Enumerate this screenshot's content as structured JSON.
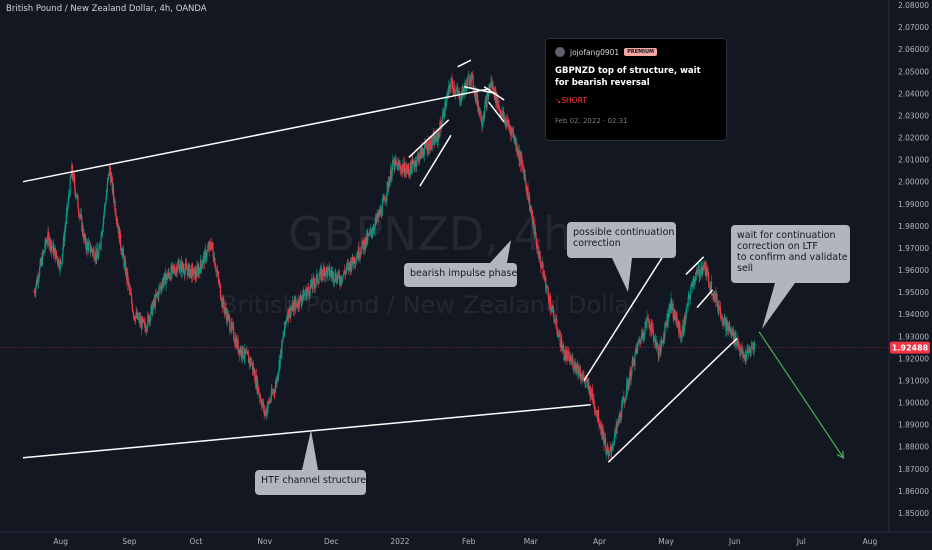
{
  "header": {
    "symbol_title": "British Pound / New Zealand Dollar, 4h, OANDA"
  },
  "watermark": {
    "ticker": "GBPNZD, 4h",
    "name": "British Pound / New Zealand Dollar"
  },
  "price_tag": {
    "value": "1.92488",
    "color": "#f23645"
  },
  "idea": {
    "author": "jojofang0901",
    "badge": "PREMIUM",
    "title": "GBPNZD top of structure, wait for bearish reversal",
    "side": "↘SHORT",
    "date": "Feb 02, 2022 · 02:31"
  },
  "colors": {
    "background": "#131722",
    "up_candle": "#089981",
    "down_candle": "#f23645",
    "drawing": "#ffffff",
    "projection": "#4caf50",
    "callout": "#b2b5be"
  },
  "chart_data": {
    "type": "candlestick",
    "title": "British Pound / New Zealand Dollar, 4h, OANDA",
    "xlabel": "",
    "ylabel": "",
    "x_ticks": [
      "Aug",
      "Sep",
      "Oct",
      "Nov",
      "Dec",
      "2022",
      "Feb",
      "Mar",
      "Apr",
      "May",
      "Jun",
      "Jul",
      "Aug"
    ],
    "y_ticks": [
      "2.08000",
      "2.07000",
      "2.06000",
      "2.05000",
      "2.04000",
      "2.03000",
      "2.02000",
      "2.01000",
      "2.00000",
      "1.99000",
      "1.98000",
      "1.97000",
      "1.96000",
      "1.95000",
      "1.94000",
      "1.93000",
      "1.92000",
      "1.91000",
      "1.90000",
      "1.89000",
      "1.88000",
      "1.87000",
      "1.86000",
      "1.85000"
    ],
    "ylim": [
      1.85,
      2.08
    ],
    "last_price": 1.92488,
    "price_path": [
      {
        "t": "2021-07-20",
        "p": 1.95
      },
      {
        "t": "2021-07-26",
        "p": 1.975
      },
      {
        "t": "2021-08-01",
        "p": 1.962
      },
      {
        "t": "2021-08-06",
        "p": 2.005
      },
      {
        "t": "2021-08-12",
        "p": 1.972
      },
      {
        "t": "2021-08-18",
        "p": 1.966
      },
      {
        "t": "2021-08-23",
        "p": 2.006
      },
      {
        "t": "2021-08-28",
        "p": 1.972
      },
      {
        "t": "2021-09-03",
        "p": 1.94
      },
      {
        "t": "2021-09-08",
        "p": 1.934
      },
      {
        "t": "2021-09-16",
        "p": 1.955
      },
      {
        "t": "2021-09-23",
        "p": 1.962
      },
      {
        "t": "2021-10-01",
        "p": 1.958
      },
      {
        "t": "2021-10-08",
        "p": 1.972
      },
      {
        "t": "2021-10-13",
        "p": 1.945
      },
      {
        "t": "2021-10-20",
        "p": 1.925
      },
      {
        "t": "2021-10-26",
        "p": 1.918
      },
      {
        "t": "2021-11-01",
        "p": 1.895
      },
      {
        "t": "2021-11-06",
        "p": 1.908
      },
      {
        "t": "2021-11-11",
        "p": 1.94
      },
      {
        "t": "2021-11-20",
        "p": 1.95
      },
      {
        "t": "2021-11-28",
        "p": 1.96
      },
      {
        "t": "2021-12-05",
        "p": 1.956
      },
      {
        "t": "2021-12-12",
        "p": 1.966
      },
      {
        "t": "2021-12-18",
        "p": 1.975
      },
      {
        "t": "2021-12-24",
        "p": 1.988
      },
      {
        "t": "2021-12-29",
        "p": 2.008
      },
      {
        "t": "2022-01-05",
        "p": 2.005
      },
      {
        "t": "2022-01-12",
        "p": 2.015
      },
      {
        "t": "2022-01-18",
        "p": 2.02
      },
      {
        "t": "2022-01-24",
        "p": 2.045
      },
      {
        "t": "2022-01-28",
        "p": 2.038
      },
      {
        "t": "2022-02-02",
        "p": 2.048
      },
      {
        "t": "2022-02-07",
        "p": 2.028
      },
      {
        "t": "2022-02-11",
        "p": 2.045
      },
      {
        "t": "2022-02-16",
        "p": 2.03
      },
      {
        "t": "2022-02-21",
        "p": 2.022
      },
      {
        "t": "2022-02-26",
        "p": 2.004
      },
      {
        "t": "2022-03-04",
        "p": 1.97
      },
      {
        "t": "2022-03-10",
        "p": 1.944
      },
      {
        "t": "2022-03-16",
        "p": 1.922
      },
      {
        "t": "2022-03-22",
        "p": 1.916
      },
      {
        "t": "2022-03-28",
        "p": 1.905
      },
      {
        "t": "2022-04-02",
        "p": 1.888
      },
      {
        "t": "2022-04-05",
        "p": 1.875
      },
      {
        "t": "2022-04-08",
        "p": 1.885
      },
      {
        "t": "2022-04-13",
        "p": 1.905
      },
      {
        "t": "2022-04-18",
        "p": 1.925
      },
      {
        "t": "2022-04-23",
        "p": 1.938
      },
      {
        "t": "2022-04-28",
        "p": 1.922
      },
      {
        "t": "2022-05-03",
        "p": 1.945
      },
      {
        "t": "2022-05-08",
        "p": 1.93
      },
      {
        "t": "2022-05-13",
        "p": 1.955
      },
      {
        "t": "2022-05-18",
        "p": 1.962
      },
      {
        "t": "2022-05-23",
        "p": 1.948
      },
      {
        "t": "2022-05-28",
        "p": 1.935
      },
      {
        "t": "2022-06-02",
        "p": 1.928
      },
      {
        "t": "2022-06-05",
        "p": 1.92
      },
      {
        "t": "2022-06-10",
        "p": 1.926
      }
    ],
    "drawings": [
      {
        "name": "channel-upper-line",
        "from": [
          "2021-07-15",
          2.0
        ],
        "to": [
          "2022-02-10",
          2.042
        ],
        "color": "#ffffff"
      },
      {
        "name": "channel-lower-line",
        "from": [
          "2021-07-15",
          1.875
        ],
        "to": [
          "2022-03-28",
          1.899
        ],
        "color": "#ffffff"
      },
      {
        "name": "rising-wedge-upper",
        "from": [
          "2022-01-05",
          2.011
        ],
        "to": [
          "2022-01-23",
          2.028
        ],
        "color": "#ffffff"
      },
      {
        "name": "rising-wedge-lower",
        "from": [
          "2022-01-10",
          1.998
        ],
        "to": [
          "2022-01-24",
          2.021
        ],
        "color": "#ffffff"
      },
      {
        "name": "top-upper-line",
        "from": [
          "2022-01-27",
          2.052
        ],
        "to": [
          "2022-02-02",
          2.055
        ],
        "color": "#ffffff"
      },
      {
        "name": "top-lower-line",
        "from": [
          "2022-01-30",
          2.043
        ],
        "to": [
          "2022-02-13",
          2.04
        ],
        "color": "#ffffff"
      },
      {
        "name": "top-right-line-a",
        "from": [
          "2022-02-08",
          2.043
        ],
        "to": [
          "2022-02-17",
          2.037
        ],
        "color": "#ffffff"
      },
      {
        "name": "top-right-line-b",
        "from": [
          "2022-02-10",
          2.036
        ],
        "to": [
          "2022-02-17",
          2.027
        ],
        "color": "#ffffff"
      },
      {
        "name": "rising-channel-upper",
        "from": [
          "2022-03-25",
          1.91
        ],
        "to": [
          "2022-05-02",
          1.97
        ],
        "color": "#ffffff"
      },
      {
        "name": "rising-channel-lower",
        "from": [
          "2022-04-05",
          1.873
        ],
        "to": [
          "2022-06-02",
          1.929
        ],
        "color": "#ffffff"
      },
      {
        "name": "rising-channel-inner-a",
        "from": [
          "2022-05-10",
          1.958
        ],
        "to": [
          "2022-05-18",
          1.966
        ],
        "color": "#ffffff"
      },
      {
        "name": "rising-channel-inner-b",
        "from": [
          "2022-05-15",
          1.943
        ],
        "to": [
          "2022-05-22",
          1.951
        ],
        "color": "#ffffff"
      },
      {
        "name": "projection-arrow",
        "from": [
          "2022-06-12",
          1.932
        ],
        "to": [
          "2022-07-20",
          1.875
        ],
        "color": "#4caf50"
      }
    ],
    "annotations": [
      {
        "name": "bearish-impulse-label",
        "lines": [
          "bearish impulse phase"
        ]
      },
      {
        "name": "continuation-label",
        "lines": [
          "possible continuation",
          "correction"
        ]
      },
      {
        "name": "wait-label",
        "lines": [
          "wait for continuation",
          "correction on LTF",
          "to confirm and validate",
          "sell"
        ]
      },
      {
        "name": "htf-channel-label",
        "lines": [
          "HTF channel structure"
        ]
      }
    ]
  }
}
